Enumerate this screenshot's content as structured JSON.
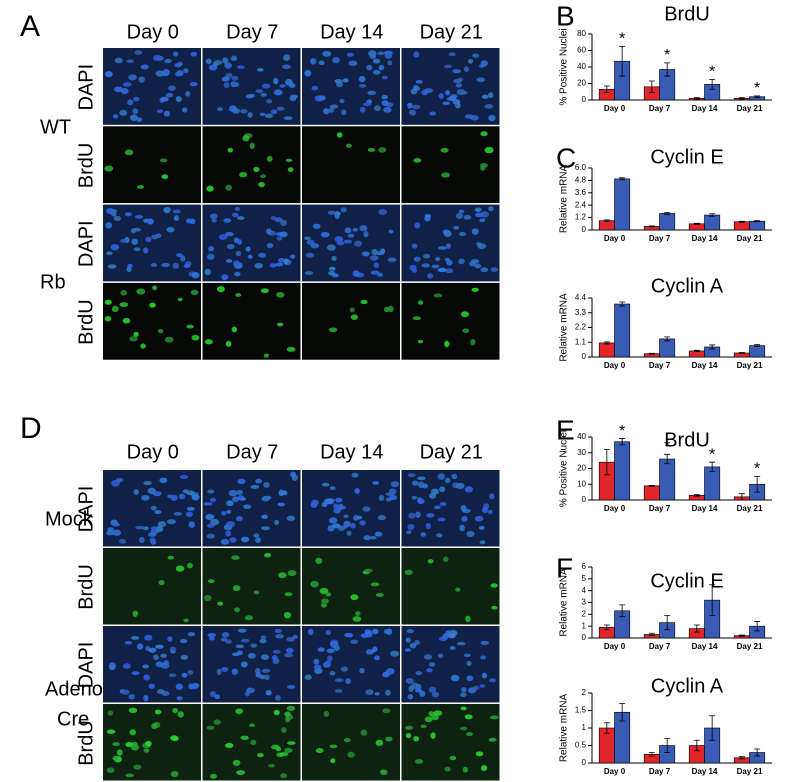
{
  "panels": [
    {
      "letter": "A",
      "columns": [
        "Day 0",
        "Day 7",
        "Day 14",
        "Day 21"
      ],
      "groups": [
        {
          "label": [
            "WT"
          ],
          "rows": [
            "DAPI",
            "BrdU"
          ]
        },
        {
          "label": [
            "Rb"
          ],
          "rows": [
            "DAPI",
            "BrdU"
          ]
        }
      ]
    },
    {
      "letter": "D",
      "columns": [
        "Day 0",
        "Day 7",
        "Day 14",
        "Day 21"
      ],
      "groups": [
        {
          "label": [
            "Mock"
          ],
          "rows": [
            "DAPI",
            "BrdU"
          ]
        },
        {
          "label": [
            "Adeno",
            "Cre"
          ],
          "rows": [
            "DAPI",
            "BrdU"
          ]
        }
      ]
    }
  ],
  "chart_data": [
    {
      "type": "bar",
      "panel_label": "B",
      "title": "BrdU",
      "ylabel": "% Positive Nuclei",
      "categories": [
        "Day 0",
        "Day 7",
        "Day 14",
        "Day 21"
      ],
      "series": [
        {
          "color": "#e0262b",
          "values": [
            13,
            16,
            2,
            2
          ],
          "errors": [
            4,
            7,
            1,
            1
          ]
        },
        {
          "color": "#3a5bb5",
          "values": [
            47,
            37,
            19,
            4
          ],
          "errors": [
            18,
            8,
            6,
            1
          ]
        }
      ],
      "annotations": [
        "*",
        "*",
        "*",
        "*"
      ],
      "ylim": [
        0,
        80
      ],
      "yticks": [
        0,
        20,
        40,
        60,
        80
      ]
    },
    {
      "type": "bar",
      "panel_label": "C",
      "title": "Cyclin E",
      "ylabel": "Relative mRNA",
      "categories": [
        "Day 0",
        "Day 7",
        "Day 14",
        "Day 21"
      ],
      "series": [
        {
          "color": "#e0262b",
          "values": [
            0.9,
            0.35,
            0.6,
            0.8
          ],
          "errors": [
            0.08,
            0.05,
            0.05,
            0.05
          ]
        },
        {
          "color": "#3a5bb5",
          "values": [
            4.95,
            1.6,
            1.45,
            0.85
          ],
          "errors": [
            0.1,
            0.08,
            0.12,
            0.05
          ]
        }
      ],
      "ylim": [
        0,
        6
      ],
      "yticks": [
        0,
        1.2,
        2.4,
        3.6,
        4.8,
        {
          "value": 6,
          "label": "6.0"
        }
      ]
    },
    {
      "type": "bar",
      "title": "Cyclin A",
      "ylabel": "Relative mRNA",
      "categories": [
        "Day 0",
        "Day 7",
        "Day 14",
        "Day 21"
      ],
      "series": [
        {
          "color": "#e0262b",
          "values": [
            1.05,
            0.25,
            0.45,
            0.3
          ],
          "errors": [
            0.08,
            0.03,
            0.05,
            0.03
          ]
        },
        {
          "color": "#3a5bb5",
          "values": [
            3.95,
            1.35,
            0.75,
            0.85
          ],
          "errors": [
            0.15,
            0.15,
            0.15,
            0.07
          ]
        }
      ],
      "ylim": [
        0,
        4.4
      ],
      "yticks": [
        0,
        1.1,
        2.2,
        3.3,
        4.4
      ]
    },
    {
      "type": "bar",
      "panel_label": "E",
      "title": "BrdU",
      "ylabel": "% Positive Nuclei",
      "categories": [
        "Day 0",
        "Day 7",
        "Day 14",
        "Day 21"
      ],
      "series": [
        {
          "color": "#e0262b",
          "values": [
            24,
            9,
            3,
            2
          ],
          "errors": [
            8,
            0.3,
            0.5,
            2
          ]
        },
        {
          "color": "#3a5bb5",
          "values": [
            37,
            26,
            21,
            10
          ],
          "errors": [
            2,
            3,
            3,
            5
          ]
        }
      ],
      "annotations": [
        "*",
        "*",
        "*",
        "*"
      ],
      "ylim": [
        0,
        40
      ],
      "yticks": [
        0,
        10,
        20,
        30,
        40
      ]
    },
    {
      "type": "bar",
      "panel_label": "F",
      "title": "Cyclin E",
      "ylabel": "Relative mRNA",
      "categories": [
        "Day 0",
        "Day 7",
        "Day 14",
        "Day 21"
      ],
      "series": [
        {
          "color": "#e0262b",
          "values": [
            0.9,
            0.3,
            0.8,
            0.2
          ],
          "errors": [
            0.2,
            0.1,
            0.3,
            0.05
          ]
        },
        {
          "color": "#3a5bb5",
          "values": [
            2.3,
            1.3,
            3.2,
            1.0
          ],
          "errors": [
            0.5,
            0.6,
            1.3,
            0.4
          ]
        }
      ],
      "ylim": [
        0,
        6
      ],
      "yticks": [
        0,
        1,
        2,
        3,
        4,
        5,
        6
      ]
    },
    {
      "type": "bar",
      "title": "Cyclin A",
      "ylabel": "Relative mRNA",
      "categories": [
        "Day 0",
        "Day 7",
        "Day 14",
        "Day 21"
      ],
      "series": [
        {
          "color": "#e0262b",
          "values": [
            1.0,
            0.25,
            0.5,
            0.15
          ],
          "errors": [
            0.15,
            0.05,
            0.15,
            0.03
          ]
        },
        {
          "color": "#3a5bb5",
          "values": [
            1.45,
            0.5,
            1.0,
            0.3
          ],
          "errors": [
            0.25,
            0.2,
            0.35,
            0.1
          ]
        }
      ],
      "ylim": [
        0,
        2
      ],
      "yticks": [
        0,
        0.5,
        1,
        1.5,
        2
      ]
    }
  ]
}
